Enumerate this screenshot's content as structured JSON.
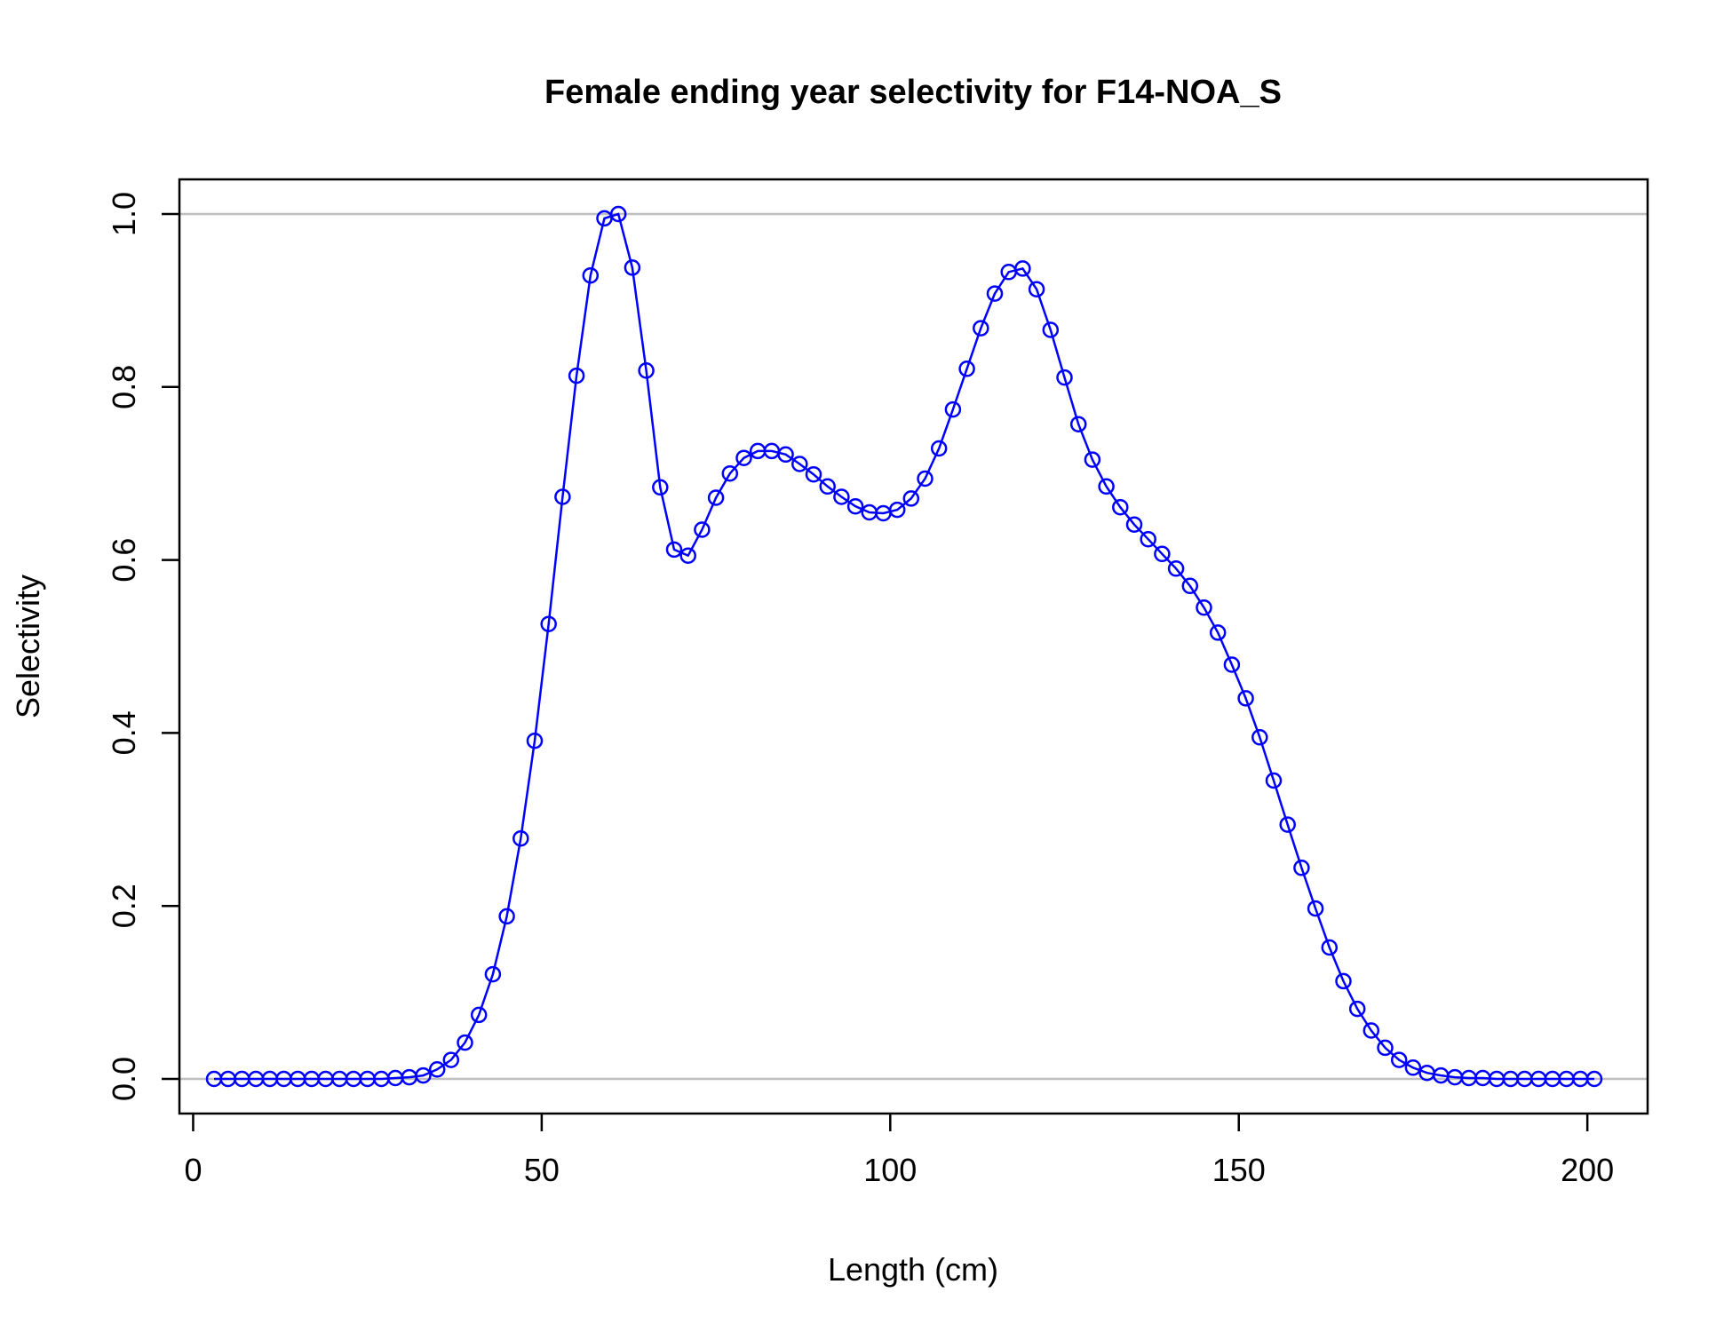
{
  "chart_data": {
    "type": "line",
    "title": "Female ending year selectivity for F14-NOA_S",
    "xlabel": "Length (cm)",
    "ylabel": "Selectivity",
    "xlim": [
      3,
      201
    ],
    "ylim": [
      0,
      1
    ],
    "x_ticks": [
      0,
      50,
      100,
      150,
      200
    ],
    "y_ticks": [
      0.0,
      0.2,
      0.4,
      0.6,
      0.8,
      1.0
    ],
    "x_tick_labels": [
      "0",
      "50",
      "100",
      "150",
      "200"
    ],
    "y_tick_labels": [
      "0.0",
      "0.2",
      "0.4",
      "0.6",
      "0.8",
      "1.0"
    ],
    "reference_lines_y": [
      0,
      1
    ],
    "grid": false,
    "series": [
      {
        "color": "#0000ff",
        "markers": "open-circle",
        "x": [
          3,
          5,
          7,
          9,
          11,
          13,
          15,
          17,
          19,
          21,
          23,
          25,
          27,
          29,
          31,
          33,
          35,
          37,
          39,
          41,
          43,
          45,
          47,
          49,
          51,
          53,
          55,
          57,
          59,
          61,
          63,
          65,
          67,
          69,
          71,
          73,
          75,
          77,
          79,
          81,
          83,
          85,
          87,
          89,
          91,
          93,
          95,
          97,
          99,
          101,
          103,
          105,
          107,
          109,
          111,
          113,
          115,
          117,
          119,
          121,
          123,
          125,
          127,
          129,
          131,
          133,
          135,
          137,
          139,
          141,
          143,
          145,
          147,
          149,
          151,
          153,
          155,
          157,
          159,
          161,
          163,
          165,
          167,
          169,
          171,
          173,
          175,
          177,
          179,
          181,
          183,
          185,
          187,
          189,
          191,
          193,
          195,
          197,
          199,
          201
        ],
        "y": [
          0,
          0,
          0,
          0,
          0,
          0,
          0,
          0,
          0,
          0,
          0,
          0,
          0,
          0.001,
          0.002,
          0.004,
          0.011,
          0.022,
          0.042,
          0.074,
          0.121,
          0.188,
          0.278,
          0.391,
          0.526,
          0.673,
          0.813,
          0.929,
          0.995,
          1.0,
          0.938,
          0.819,
          0.684,
          0.612,
          0.605,
          0.635,
          0.672,
          0.7,
          0.718,
          0.726,
          0.726,
          0.722,
          0.711,
          0.699,
          0.685,
          0.673,
          0.662,
          0.655,
          0.654,
          0.658,
          0.671,
          0.694,
          0.729,
          0.774,
          0.821,
          0.868,
          0.908,
          0.933,
          0.937,
          0.913,
          0.866,
          0.811,
          0.757,
          0.716,
          0.685,
          0.661,
          0.641,
          0.624,
          0.607,
          0.59,
          0.57,
          0.545,
          0.516,
          0.479,
          0.44,
          0.395,
          0.345,
          0.294,
          0.244,
          0.197,
          0.152,
          0.113,
          0.081,
          0.056,
          0.036,
          0.022,
          0.013,
          0.007,
          0.004,
          0.002,
          0.001,
          0.001,
          0,
          0,
          0,
          0,
          0,
          0,
          0,
          0
        ]
      }
    ]
  }
}
